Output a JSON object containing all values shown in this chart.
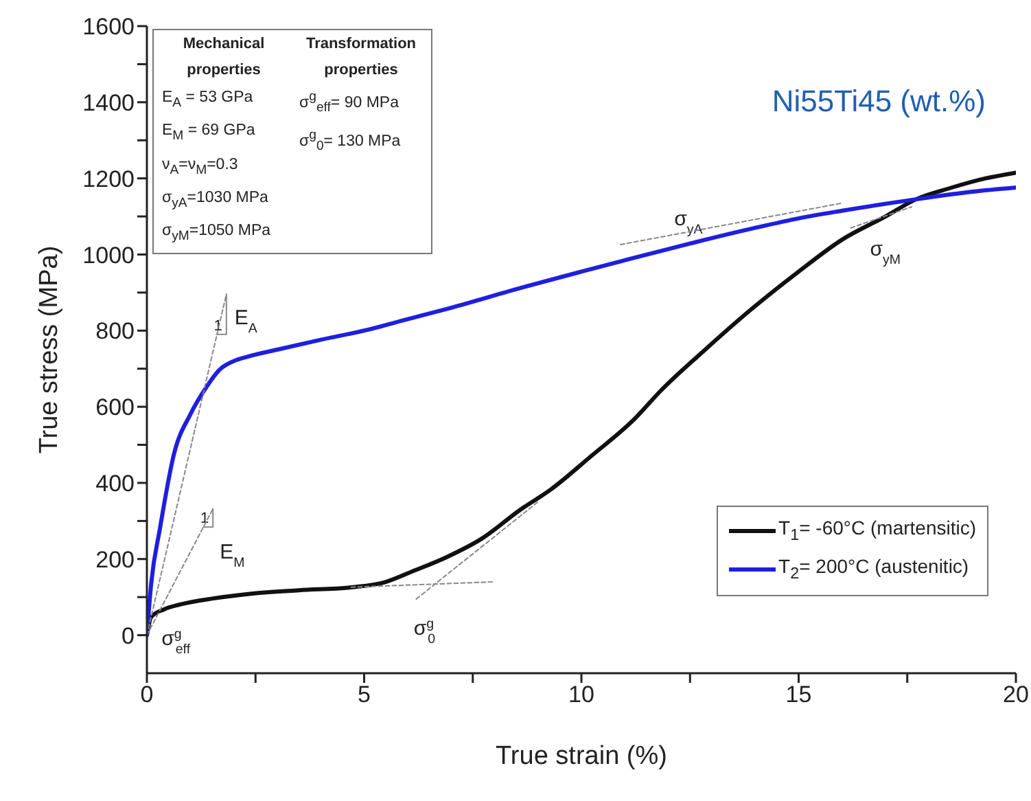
{
  "chart_data": {
    "type": "line",
    "title": "Ni55Ti45 (wt.%)",
    "xlabel": "True strain (%)",
    "ylabel": "True stress (MPa)",
    "xlim": [
      0,
      20
    ],
    "ylim": [
      -100,
      1600
    ],
    "xticks": [
      0,
      {
        "value": 2.5,
        "label": null
      },
      5,
      {
        "value": 7.5,
        "label": null
      },
      10,
      {
        "value": 12.5,
        "label": null
      },
      15,
      {
        "value": 17.5,
        "label": null
      },
      20
    ],
    "yticks": [
      0,
      {
        "value": 100,
        "label": null
      },
      200,
      {
        "value": 300,
        "label": null
      },
      400,
      {
        "value": 500,
        "label": null
      },
      600,
      {
        "value": 700,
        "label": null
      },
      800,
      {
        "value": 900,
        "label": null
      },
      1000,
      {
        "value": 1100,
        "label": null
      },
      1200,
      {
        "value": 1300,
        "label": null
      },
      1400,
      {
        "value": 1500,
        "label": null
      },
      1600
    ],
    "grid": false,
    "legend": "bottom right",
    "marker": "none",
    "line_style": "solid",
    "series": [
      {
        "name": "T$_{1}$= -60°C (martensitic)",
        "color": "#111111",
        "x": [
          0,
          0.1,
          0.4,
          0.82,
          1.5,
          2.4,
          3.5,
          4.74,
          5.5,
          6.1,
          6.9,
          7.7,
          8.6,
          9.3,
          10.2,
          11.25,
          11.8,
          12.8,
          13.9,
          15,
          16,
          17,
          17.7,
          18.5,
          19.3,
          20
        ],
        "values": [
          0,
          48,
          68,
          82,
          96,
          109,
          118,
          126,
          140,
          167,
          205,
          253,
          330,
          383,
          468,
          571,
          639,
          745,
          855,
          955,
          1039,
          1100,
          1145,
          1175,
          1200,
          1215
        ]
      },
      {
        "name": "T$_{2}$= 200°C (austenitic)",
        "color": "#1f1fdf",
        "x": [
          0,
          0.1,
          0.3,
          0.63,
          1,
          1.36,
          1.67,
          2,
          2.3,
          3,
          4,
          5,
          6,
          7,
          8.63,
          10,
          11,
          12.4,
          14,
          15,
          16,
          17.7,
          19,
          20
        ],
        "values": [
          0,
          137,
          280,
          479,
          580,
          650,
          697,
          720,
          731,
          750,
          776,
          800,
          830,
          860,
          913,
          955,
          985,
          1026,
          1070,
          1095,
          1115,
          1145,
          1165,
          1176
        ]
      },
      {
        "color": "#888888",
        "line_style": "dashed",
        "x": [
          0,
          1.83
        ],
        "values": [
          0,
          896
        ]
      },
      {
        "color": "#888888",
        "line_style": "solid",
        "x": [
          1.6,
          1.83,
          1.83
        ],
        "values": [
          790,
          790,
          896
        ]
      },
      {
        "color": "#888888",
        "line_style": "dashed",
        "x": [
          0,
          1.52
        ],
        "values": [
          0,
          332
        ]
      },
      {
        "color": "#888888",
        "line_style": "solid",
        "x": [
          1.3,
          1.52,
          1.52
        ],
        "values": [
          284,
          284,
          332
        ]
      },
      {
        "color": "#888888",
        "line_style": "dashed",
        "x": [
          4.7,
          8
        ],
        "values": [
          126,
          140
        ]
      },
      {
        "color": "#888888",
        "line_style": "dashed",
        "x": [
          6.2,
          9
        ],
        "values": [
          95,
          350
        ]
      },
      {
        "color": "#888888",
        "line_style": "dashed",
        "x": [
          10.9,
          16
        ],
        "values": [
          1026,
          1135
        ]
      },
      {
        "color": "#888888",
        "line_style": "dashed",
        "x": [
          16.2,
          17.6
        ],
        "values": [
          1070,
          1125
        ]
      }
    ],
    "annotations": [
      "Mechanical properties",
      "E$_{A}$ = 53 GPa",
      "E$_{M}$ = 69 GPa",
      "ν$_{A}$=ν$_{M}$=0.3",
      "σ$_{yA}$=1030 MPa",
      "σ$_{yM}$=1050 MPa",
      "Transformation properties",
      "σ$^{g}$$_{eff}$= 90 MPa",
      "σ$^{g}$$_{0}$=  130 MPa",
      {
        "text": "E$_{A}$",
        "x": 1.83,
        "y": 896
      },
      {
        "text": "1",
        "x": 1.83,
        "y": 790
      },
      {
        "text": "E$_{M}$",
        "x": 1.52,
        "y": 332
      },
      {
        "text": "1",
        "x": 1.52,
        "y": 284
      },
      {
        "text": "σ$^{g}$$_{eff}$",
        "x": 0.4,
        "y": 68
      },
      {
        "text": "σ$^{g}$$_{0}$",
        "x": 6.2,
        "y": 95
      },
      {
        "text": "σ$_{yA}$",
        "x": 12.4,
        "y": 1026
      },
      {
        "text": "σ$_{yM}$",
        "x": 16.2,
        "y": 1070
      }
    ]
  }
}
